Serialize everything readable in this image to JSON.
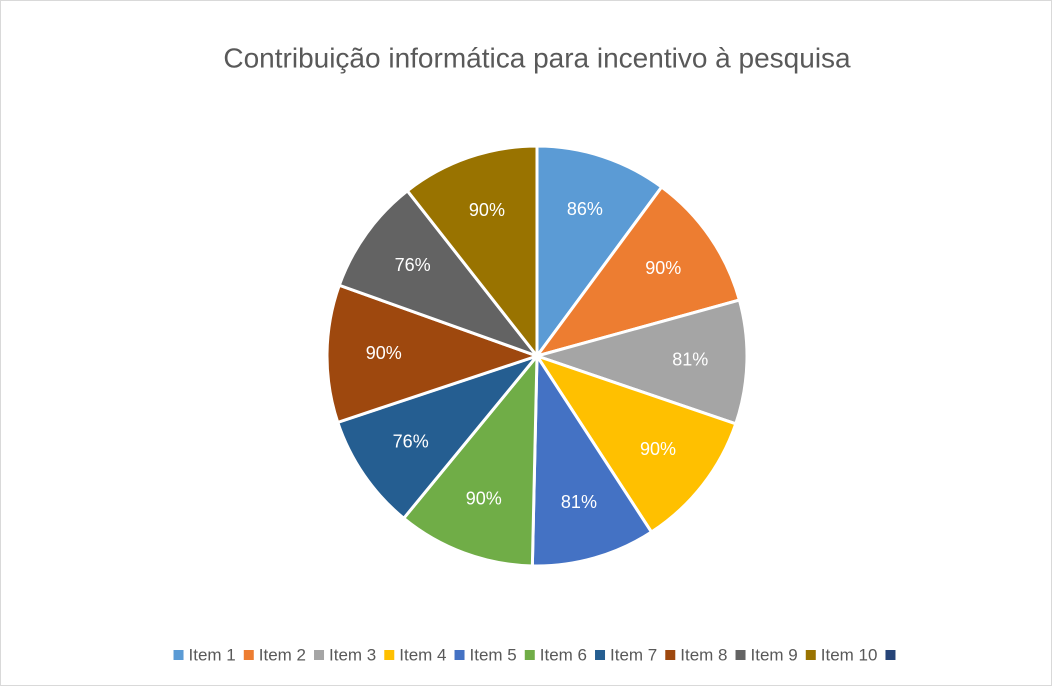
{
  "chart_data": {
    "type": "pie",
    "title": "Contribuição informática para incentivo à pesquisa",
    "categories": [
      "Item 1",
      "Item 2",
      "Item 3",
      "Item 4",
      "Item 5",
      "Item 6",
      "Item 7",
      "Item 8",
      "Item 9",
      "Item 10",
      null
    ],
    "values": [
      86,
      90,
      81,
      90,
      81,
      90,
      76,
      90,
      76,
      90,
      null
    ],
    "value_labels": [
      "86%",
      "90%",
      "81%",
      "90%",
      "81%",
      "90%",
      "76%",
      "90%",
      "76%",
      "90%",
      null
    ],
    "colors": [
      "#5b9bd5",
      "#ed7d31",
      "#a5a5a5",
      "#ffc000",
      "#4472c4",
      "#70ad47",
      "#255e91",
      "#9e480e",
      "#636363",
      "#997300",
      "#264478"
    ],
    "legend": "bottom"
  }
}
